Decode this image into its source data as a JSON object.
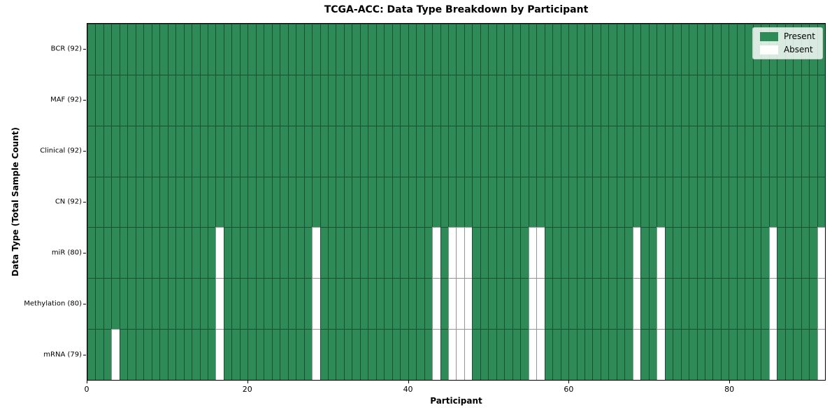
{
  "chart_data": {
    "type": "heatmap",
    "title": "TCGA-ACC: Data Type Breakdown by Participant",
    "xlabel": "Participant",
    "ylabel": "Data Type (Total Sample Count)",
    "n_participants": 92,
    "x_ticks": [
      0,
      20,
      40,
      60,
      80
    ],
    "rows": [
      {
        "name": "BCR",
        "label": "BCR (92)",
        "present_count": 92,
        "absent_participants": []
      },
      {
        "name": "MAF",
        "label": "MAF (92)",
        "present_count": 92,
        "absent_participants": []
      },
      {
        "name": "Clinical",
        "label": "Clinical (92)",
        "present_count": 92,
        "absent_participants": []
      },
      {
        "name": "CN",
        "label": "CN (92)",
        "present_count": 92,
        "absent_participants": []
      },
      {
        "name": "miR",
        "label": "miR (80)",
        "present_count": 80,
        "absent_participants": [
          16,
          28,
          43,
          45,
          46,
          47,
          55,
          56,
          68,
          71,
          85,
          91
        ]
      },
      {
        "name": "Methylation",
        "label": "Methylation (80)",
        "present_count": 80,
        "absent_participants": [
          16,
          28,
          43,
          45,
          46,
          47,
          55,
          56,
          68,
          71,
          85,
          91
        ]
      },
      {
        "name": "mRNA",
        "label": "mRNA (79)",
        "present_count": 79,
        "absent_participants": [
          3,
          16,
          28,
          43,
          45,
          46,
          47,
          55,
          56,
          68,
          71,
          85,
          91
        ]
      }
    ],
    "legend": [
      {
        "label": "Present",
        "color": "#2E8B57"
      },
      {
        "label": "Absent",
        "color": "#FFFFFF"
      }
    ],
    "colors": {
      "present": "#2E8B57",
      "absent": "#FFFFFF",
      "cell_edge": "rgba(0,0,0,0.42)",
      "spine": "#000000"
    }
  }
}
